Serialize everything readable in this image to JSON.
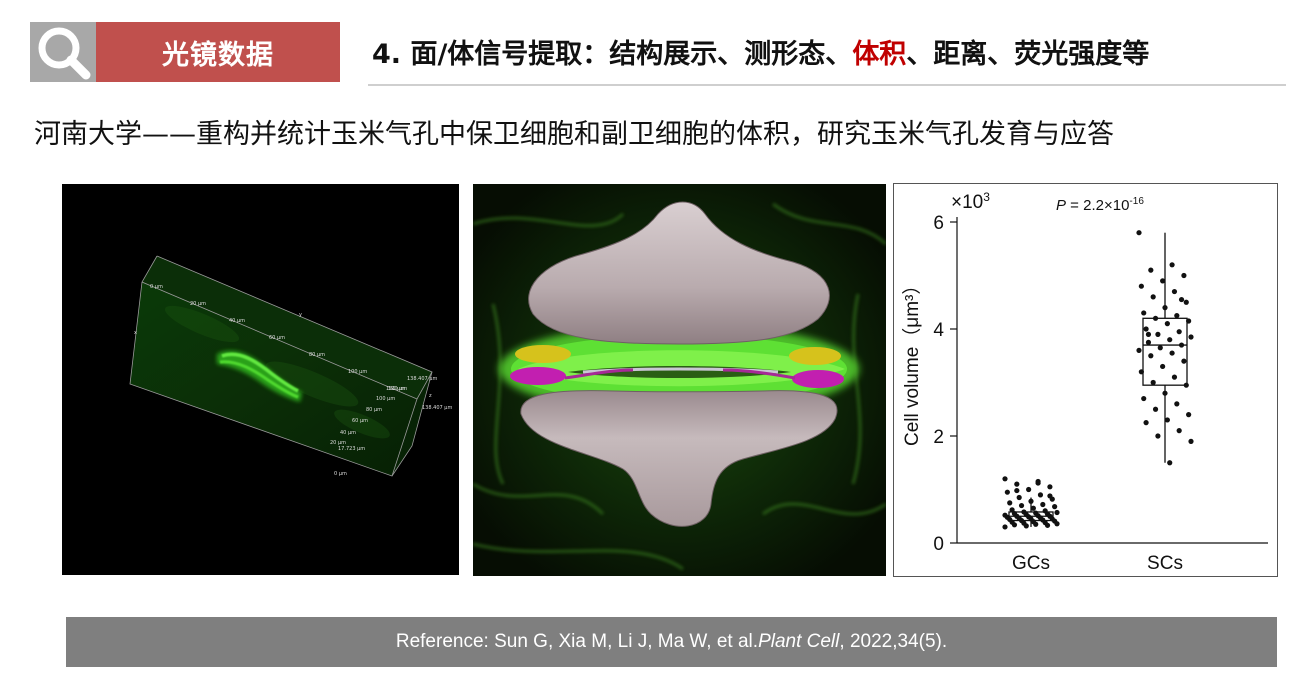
{
  "header": {
    "search_icon": "search-icon",
    "tag": "光镜数据",
    "title_prefix": "4. 面/体信号提取：结构展示、测形态、",
    "title_highlight": "体积",
    "title_suffix": "、距离、荧光强度等",
    "highlight_color": "#c00000",
    "tag_color": "#c0504d"
  },
  "subtitle": "河南大学——重构并统计玉米气孔中保卫细胞和副卫细胞的体积，研究玉米气孔发育与应答",
  "panel_a": {
    "scale_labels_top": [
      "0 μm",
      "20 μm",
      "40 μm",
      "60 μm",
      "80 μm",
      "100 μm",
      "120 μm",
      "138.407 μm"
    ],
    "scale_labels_side": [
      "0 μm",
      "20 μm",
      "40 μm",
      "60 μm",
      "80 μm",
      "100 μm",
      "120 μm",
      "138.407 μm",
      "17.723 μm"
    ],
    "axis_x": "x",
    "axis_y": "y",
    "axis_z": "z"
  },
  "chart_data": {
    "type": "box-scatter",
    "categories": [
      "GCs",
      "SCs"
    ],
    "ylabel": "Cell volume（μm³）",
    "y_multiplier_base": "×10",
    "y_multiplier_exp": "3",
    "ylim": [
      0,
      6
    ],
    "yticks": [
      0,
      2,
      4,
      6
    ],
    "p_label": "P",
    "p_value_text": " = 2.2×10",
    "p_value_exp": "-16",
    "boxes": [
      {
        "category": "GCs",
        "min": 0.3,
        "q1": 0.42,
        "median": 0.5,
        "q3": 0.58,
        "max": 0.85
      },
      {
        "category": "SCs",
        "min": 1.5,
        "q1": 2.95,
        "median": 3.7,
        "q3": 4.2,
        "max": 5.8
      }
    ],
    "points": [
      {
        "category": "GCs",
        "values": [
          1.2,
          1.15,
          1.1,
          1.05,
          1.0,
          0.95,
          0.9,
          0.85,
          0.82,
          0.78,
          0.75,
          0.72,
          0.7,
          0.68,
          0.65,
          0.62,
          0.6,
          0.58,
          0.57,
          0.56,
          0.55,
          0.54,
          0.53,
          0.52,
          0.51,
          0.5,
          0.5,
          0.49,
          0.48,
          0.47,
          0.46,
          0.45,
          0.45,
          0.44,
          0.43,
          0.42,
          0.41,
          0.4,
          0.39,
          0.38,
          0.37,
          0.36,
          0.35,
          0.34,
          0.33,
          0.32,
          0.3,
          1.12,
          0.98,
          0.88
        ]
      },
      {
        "category": "SCs",
        "values": [
          5.8,
          5.2,
          5.1,
          5.0,
          4.9,
          4.8,
          4.7,
          4.6,
          4.5,
          4.4,
          4.3,
          4.25,
          4.2,
          4.15,
          4.1,
          4.0,
          3.95,
          3.9,
          3.85,
          3.8,
          3.75,
          3.7,
          3.65,
          3.6,
          3.55,
          3.5,
          3.4,
          3.3,
          3.2,
          3.1,
          3.0,
          2.95,
          2.8,
          2.7,
          2.6,
          2.5,
          2.4,
          2.3,
          2.25,
          2.1,
          2.0,
          1.9,
          1.5,
          3.9,
          4.55
        ]
      }
    ]
  },
  "reference": {
    "prefix": "Reference: Sun G, Xia M, Li J, Ma W, et al. ",
    "journal": "Plant Cell",
    "suffix": ", 2022,34(5)."
  }
}
